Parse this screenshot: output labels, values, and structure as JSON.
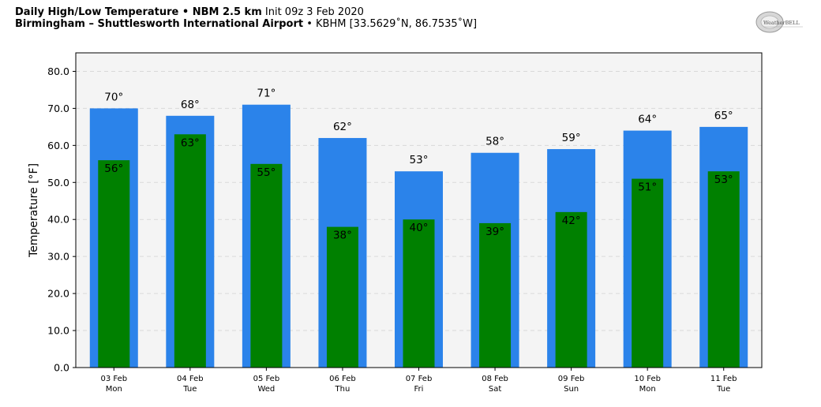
{
  "header": {
    "title_bold": "Daily High/Low Temperature • NBM 2.5 km",
    "title_init": "Init 09z 3 Feb 2020",
    "location_bold": "Birmingham – Shuttlesworth International Airport",
    "location_rest": "• KBHM [33.5629˚N, 86.7535˚W]",
    "logo_text": "WeatherBELL"
  },
  "colors": {
    "high": "#2b83ea",
    "low": "#008000",
    "plot_bg": "#f4f4f4",
    "grid": "#d9d9d9"
  },
  "chart_data": {
    "type": "bar",
    "ylabel": "Temperature [°F]",
    "ylim": [
      0,
      85
    ],
    "yticks": [
      "0.0",
      "10.0",
      "20.0",
      "30.0",
      "40.0",
      "50.0",
      "60.0",
      "70.0",
      "80.0"
    ],
    "grid": true,
    "categories": [
      {
        "date": "03 Feb",
        "day": "Mon"
      },
      {
        "date": "04 Feb",
        "day": "Tue"
      },
      {
        "date": "05 Feb",
        "day": "Wed"
      },
      {
        "date": "06 Feb",
        "day": "Thu"
      },
      {
        "date": "07 Feb",
        "day": "Fri"
      },
      {
        "date": "08 Feb",
        "day": "Sat"
      },
      {
        "date": "09 Feb",
        "day": "Sun"
      },
      {
        "date": "10 Feb",
        "day": "Mon"
      },
      {
        "date": "11 Feb",
        "day": "Tue"
      }
    ],
    "series": [
      {
        "key": "high",
        "values": [
          70,
          68,
          71,
          62,
          53,
          58,
          59,
          64,
          65
        ],
        "labels": [
          "70°",
          "68°",
          "71°",
          "62°",
          "53°",
          "58°",
          "59°",
          "64°",
          "65°"
        ]
      },
      {
        "key": "low",
        "values": [
          56,
          63,
          55,
          38,
          40,
          39,
          42,
          51,
          53
        ],
        "labels": [
          "56°",
          "63°",
          "55°",
          "38°",
          "40°",
          "39°",
          "42°",
          "51°",
          "53°"
        ]
      }
    ]
  }
}
